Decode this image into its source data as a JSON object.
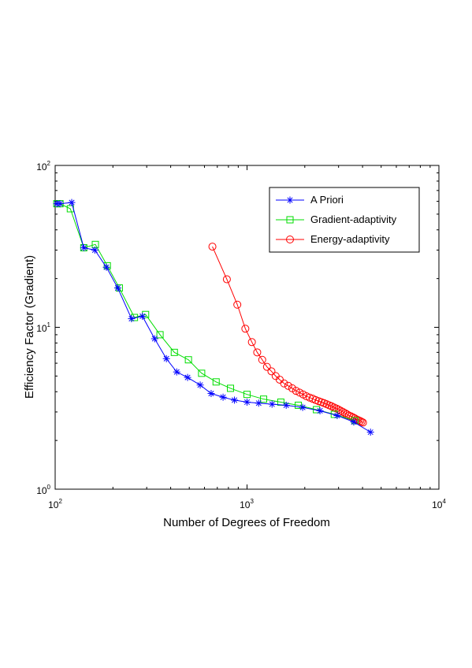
{
  "chart_data": {
    "type": "line",
    "xlabel": "Number of Degrees of Freedom",
    "ylabel": "Efficiency Factor (Gradient)",
    "xscale": "log",
    "yscale": "log",
    "xlim": [
      100,
      10000
    ],
    "ylim": [
      1,
      100
    ],
    "x_tick_labels": [
      {
        "base": "10",
        "exp": "2"
      },
      {
        "base": "10",
        "exp": "3"
      },
      {
        "base": "10",
        "exp": "4"
      }
    ],
    "y_tick_labels": [
      {
        "base": "10",
        "exp": "0"
      },
      {
        "base": "10",
        "exp": "1"
      },
      {
        "base": "10",
        "exp": "2"
      }
    ],
    "legend_position": "top-right",
    "series": [
      {
        "name": "A Priori",
        "color": "#0000ff",
        "marker": "asterisk",
        "x": [
          102,
          106,
          122,
          141,
          161,
          185,
          212,
          250,
          285,
          330,
          380,
          430,
          490,
          570,
          650,
          750,
          860,
          1000,
          1150,
          1350,
          1600,
          1950,
          2400,
          2950,
          3600,
          4400
        ],
        "y": [
          58,
          58,
          59,
          31,
          30,
          23.5,
          17.5,
          11.3,
          11.7,
          8.5,
          6.4,
          5.3,
          4.9,
          4.4,
          3.9,
          3.7,
          3.55,
          3.45,
          3.4,
          3.35,
          3.3,
          3.2,
          3.05,
          2.85,
          2.6,
          2.25
        ]
      },
      {
        "name": "Gradient-adaptivity",
        "color": "#00dd00",
        "marker": "square",
        "x": [
          102,
          106,
          120,
          141,
          162,
          187,
          216,
          259,
          296,
          352,
          418,
          495,
          580,
          690,
          820,
          1000,
          1220,
          1500,
          1850,
          2300,
          2850,
          3650
        ],
        "y": [
          58,
          58,
          54,
          31,
          32.5,
          24,
          17.5,
          11.5,
          12,
          9,
          7,
          6.3,
          5.2,
          4.6,
          4.2,
          3.85,
          3.6,
          3.45,
          3.3,
          3.1,
          2.9,
          2.65
        ]
      },
      {
        "name": "Energy-adaptivity",
        "color": "#ff0000",
        "marker": "circle",
        "x": [
          660,
          785,
          890,
          980,
          1060,
          1130,
          1200,
          1270,
          1340,
          1410,
          1480,
          1560,
          1640,
          1720,
          1800,
          1880,
          1960,
          2040,
          2120,
          2200,
          2280,
          2360,
          2440,
          2520,
          2600,
          2680,
          2760,
          2840,
          2920,
          3000,
          3080,
          3160,
          3240,
          3320,
          3400,
          3480,
          3560,
          3640,
          3720,
          3800,
          3880,
          3950,
          4020
        ],
        "y": [
          31.5,
          19.8,
          13.8,
          9.8,
          8.1,
          7.0,
          6.3,
          5.7,
          5.35,
          5.0,
          4.75,
          4.5,
          4.35,
          4.2,
          4.05,
          3.95,
          3.85,
          3.75,
          3.68,
          3.62,
          3.55,
          3.5,
          3.45,
          3.4,
          3.35,
          3.3,
          3.25,
          3.2,
          3.15,
          3.1,
          3.05,
          3.0,
          2.95,
          2.9,
          2.85,
          2.82,
          2.78,
          2.74,
          2.7,
          2.67,
          2.64,
          2.61,
          2.58
        ]
      }
    ]
  }
}
